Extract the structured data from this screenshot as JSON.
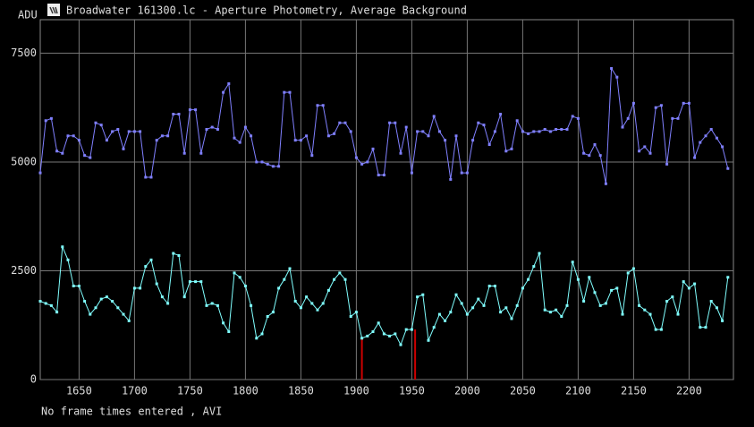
{
  "chart_data": {
    "type": "line",
    "title": "Broadwater 161300.lc - Aperture Photometry, Average Background",
    "y_label": "ADU",
    "footer": "No frame times entered , AVI",
    "x": [
      1615,
      1620,
      1625,
      1630,
      1635,
      1640,
      1645,
      1650,
      1655,
      1660,
      1665,
      1670,
      1675,
      1680,
      1685,
      1690,
      1695,
      1700,
      1705,
      1710,
      1715,
      1720,
      1725,
      1730,
      1735,
      1740,
      1745,
      1750,
      1755,
      1760,
      1765,
      1770,
      1775,
      1780,
      1785,
      1790,
      1795,
      1800,
      1805,
      1810,
      1815,
      1820,
      1825,
      1830,
      1835,
      1840,
      1845,
      1850,
      1855,
      1860,
      1865,
      1870,
      1875,
      1880,
      1885,
      1890,
      1895,
      1900,
      1905,
      1910,
      1915,
      1920,
      1925,
      1930,
      1935,
      1940,
      1945,
      1950,
      1955,
      1960,
      1965,
      1970,
      1975,
      1980,
      1985,
      1990,
      1995,
      2000,
      2005,
      2010,
      2015,
      2020,
      2025,
      2030,
      2035,
      2040,
      2045,
      2050,
      2055,
      2060,
      2065,
      2070,
      2075,
      2080,
      2085,
      2090,
      2095,
      2100,
      2105,
      2110,
      2115,
      2120,
      2125,
      2130,
      2135,
      2140,
      2145,
      2150,
      2155,
      2160,
      2165,
      2170,
      2175,
      2180,
      2185,
      2190,
      2195,
      2200,
      2205,
      2210,
      2215,
      2220,
      2225,
      2230,
      2235
    ],
    "series": [
      {
        "color": "#8080ff",
        "values": [
          4750,
          5950,
          6000,
          5250,
          5200,
          5600,
          5600,
          5500,
          5150,
          5100,
          5900,
          5850,
          5500,
          5700,
          5750,
          5300,
          5700,
          5700,
          5700,
          4650,
          4650,
          5500,
          5600,
          5600,
          6100,
          6100,
          5200,
          6200,
          6200,
          5200,
          5750,
          5800,
          5750,
          6600,
          6800,
          5550,
          5450,
          5800,
          5600,
          5000,
          5000,
          4950,
          4900,
          4900,
          6600,
          6600,
          5500,
          5500,
          5600,
          5150,
          6300,
          6300,
          5600,
          5650,
          5900,
          5900,
          5700,
          5100,
          4950,
          5000,
          5300,
          4700,
          4700,
          5900,
          5900,
          5200,
          5800,
          4750,
          5700,
          5700,
          5600,
          6050,
          5700,
          5500,
          4600,
          5600,
          4750,
          4750,
          5500,
          5900,
          5850,
          5400,
          5700,
          6100,
          5250,
          5300,
          5950,
          5700,
          5650,
          5700,
          5700,
          5750,
          5700,
          5750,
          5750,
          5750,
          6050,
          6000,
          5200,
          5150,
          5400,
          5150,
          4500,
          7150,
          6950,
          5800,
          6000,
          6350,
          5250,
          5350,
          5200,
          6250,
          6300,
          4950,
          6000,
          6000,
          6350,
          6350,
          5100,
          5450,
          5600,
          5750,
          5550,
          5350,
          4850
        ]
      },
      {
        "color": "#80ffff",
        "values": [
          1800,
          1750,
          1700,
          1550,
          3050,
          2750,
          2150,
          2150,
          1800,
          1500,
          1650,
          1850,
          1900,
          1800,
          1650,
          1500,
          1350,
          2100,
          2100,
          2600,
          2750,
          2200,
          1900,
          1750,
          2900,
          2850,
          1900,
          2250,
          2250,
          2250,
          1700,
          1750,
          1700,
          1300,
          1100,
          2450,
          2350,
          2150,
          1700,
          950,
          1050,
          1450,
          1550,
          2100,
          2300,
          2550,
          1800,
          1650,
          1900,
          1750,
          1600,
          1750,
          2050,
          2300,
          2450,
          2300,
          1450,
          1550,
          950,
          1000,
          1100,
          1300,
          1050,
          1000,
          1050,
          800,
          1150,
          1150,
          1900,
          1950,
          900,
          1200,
          1500,
          1350,
          1550,
          1950,
          1750,
          1500,
          1650,
          1850,
          1700,
          2150,
          2150,
          1550,
          1650,
          1400,
          1700,
          2100,
          2300,
          2600,
          2900,
          1600,
          1550,
          1600,
          1450,
          1700,
          2700,
          2300,
          1800,
          2350,
          2000,
          1700,
          1750,
          2050,
          2100,
          1500,
          2450,
          2550,
          1700,
          1600,
          1500,
          1150,
          1150,
          1800,
          1900,
          1500,
          2250,
          2100,
          2200,
          1200,
          1200,
          1800,
          1650,
          1350,
          2350
        ]
      }
    ],
    "flags": {
      "color": "#cc0000",
      "x": [
        1905,
        1953
      ],
      "values": [
        950,
        1150
      ]
    },
    "xlim": [
      1615,
      2240
    ],
    "ylim": [
      0,
      8270
    ],
    "xticks": [
      1650,
      1700,
      1750,
      1800,
      1850,
      1900,
      1950,
      2000,
      2050,
      2100,
      2150,
      2200
    ],
    "yticks": [
      0,
      2500,
      5000,
      7500
    ],
    "grid": true
  }
}
